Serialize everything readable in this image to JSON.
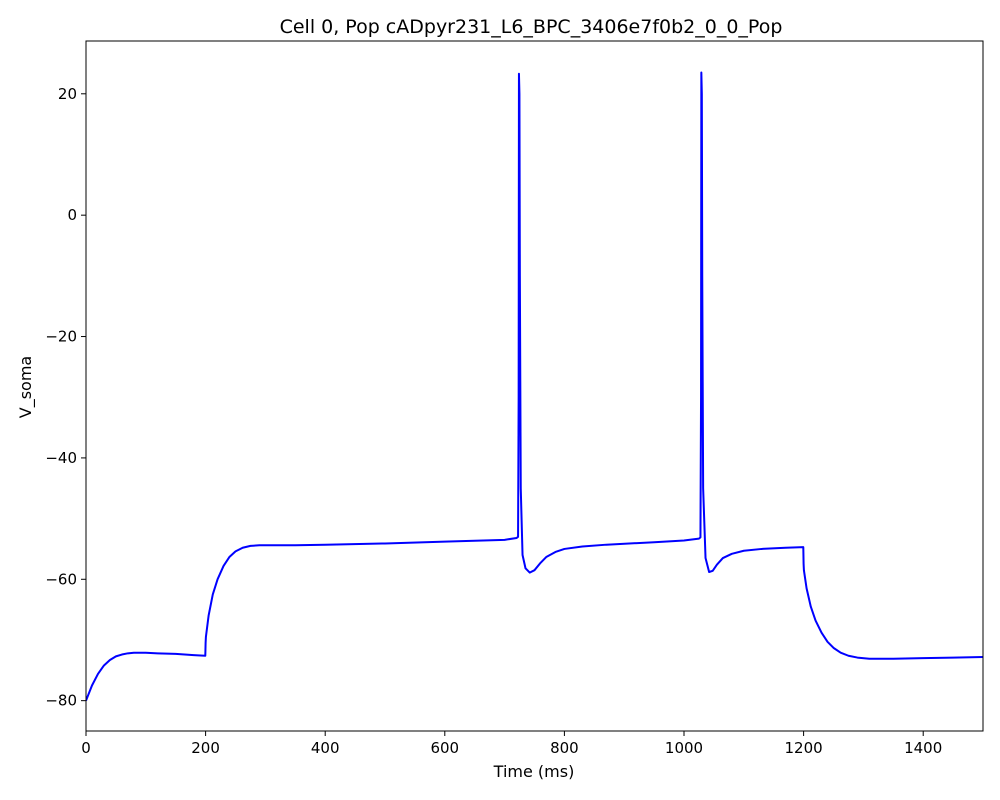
{
  "chart_data": {
    "type": "line",
    "title": "Cell 0, Pop cADpyr231_L6_BPC_3406e7f0b2_0_0_Pop",
    "xlabel": "Time (ms)",
    "ylabel": "V_soma",
    "xlim": [
      0,
      1500
    ],
    "ylim": [
      -85,
      28.7
    ],
    "x_ticks": [
      0,
      200,
      400,
      600,
      800,
      1000,
      1200,
      1400
    ],
    "y_ticks": [
      -80,
      -60,
      -40,
      -20,
      0,
      20
    ],
    "grid": false,
    "series": [
      {
        "color": "#0000ff",
        "x": [
          0,
          10,
          20,
          30,
          40,
          50,
          60,
          70,
          80,
          100,
          120,
          150,
          180,
          199.5,
          200,
          200.5,
          205,
          212,
          220,
          230,
          240,
          250,
          262,
          275,
          290,
          300,
          350,
          400,
          500,
          600,
          700,
          720,
          722.5,
          723.5,
          724,
          724.8,
          725.5,
          727,
          730,
          735,
          742,
          750,
          760,
          770,
          785,
          800,
          830,
          870,
          950,
          1000,
          1025,
          1027.5,
          1028.5,
          1029,
          1029.8,
          1030.5,
          1032,
          1036,
          1042,
          1048,
          1055,
          1065,
          1080,
          1100,
          1130,
          1170,
          1199.5,
          1200,
          1200.5,
          1205,
          1212,
          1220,
          1230,
          1240,
          1250,
          1262,
          1275,
          1290,
          1310,
          1330,
          1350,
          1400,
          1450,
          1500
        ],
        "y": [
          -80,
          -77.5,
          -75.6,
          -74.2,
          -73.3,
          -72.7,
          -72.4,
          -72.2,
          -72.1,
          -72.1,
          -72.2,
          -72.3,
          -72.5,
          -72.6,
          -70.5,
          -69.5,
          -66,
          -62.5,
          -60,
          -57.8,
          -56.3,
          -55.4,
          -54.8,
          -54.5,
          -54.4,
          -54.4,
          -54.4,
          -54.3,
          -54.1,
          -53.8,
          -53.5,
          -53.2,
          -53,
          -30,
          23.3,
          20,
          -10,
          -45,
          -56,
          -58.2,
          -58.9,
          -58.5,
          -57.3,
          -56.3,
          -55.5,
          -55,
          -54.6,
          -54.3,
          -53.9,
          -53.6,
          -53.3,
          -53.1,
          -30,
          23.5,
          20,
          -10,
          -45,
          -56.5,
          -58.8,
          -58.6,
          -57.6,
          -56.5,
          -55.8,
          -55.3,
          -55,
          -54.8,
          -54.7,
          -57.5,
          -58.5,
          -61.5,
          -64.5,
          -66.8,
          -68.8,
          -70.3,
          -71.3,
          -72.1,
          -72.6,
          -72.9,
          -73.1,
          -73.1,
          -73.1,
          -73,
          -72.9,
          -72.8
        ]
      }
    ]
  }
}
